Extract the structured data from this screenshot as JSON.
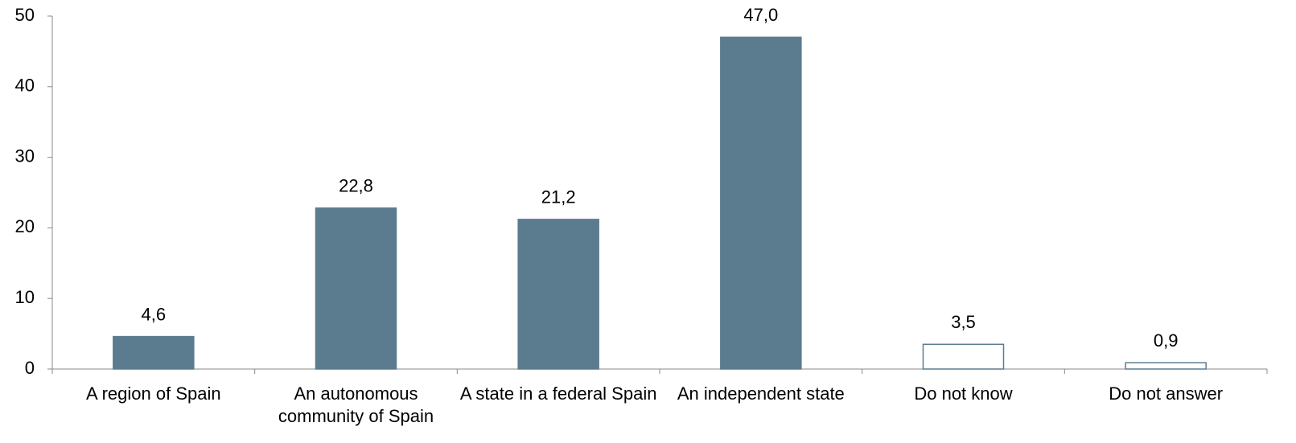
{
  "chart_data": {
    "type": "bar",
    "categories": [
      "A region of Spain",
      "An autonomous community of Spain",
      "A state in a federal Spain",
      "An independent state",
      "Do not know",
      "Do not answer"
    ],
    "values": [
      4.6,
      22.8,
      21.2,
      47.0,
      3.5,
      0.9
    ],
    "value_labels": [
      "4,6",
      "22,8",
      "21,2",
      "47,0",
      "3,5",
      "0,9"
    ],
    "colors": [
      "#5b7c8f",
      "#5b7c8f",
      "#5b7c8f",
      "#5b7c8f",
      "#ffffff",
      "#ffffff"
    ],
    "edgecolor": "#5b7c8f",
    "ylim": [
      0,
      50
    ],
    "yticks": [
      0,
      10,
      20,
      30,
      40,
      50
    ]
  }
}
